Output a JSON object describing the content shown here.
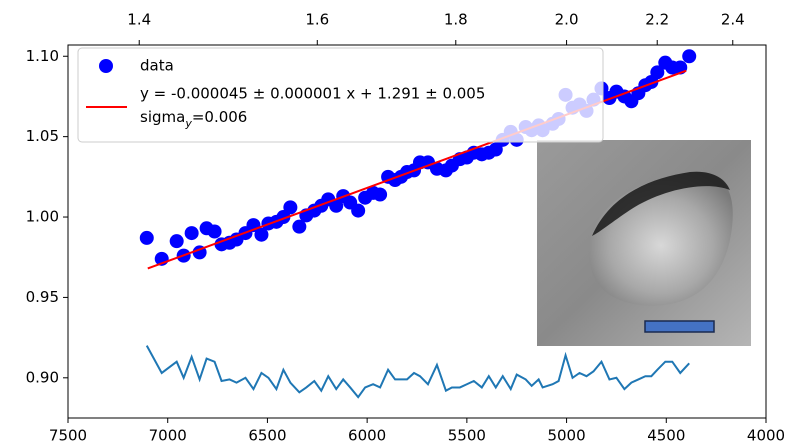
{
  "chart_data": {
    "type": "scatter",
    "xlim": [
      7500,
      4000
    ],
    "ylim": [
      0.875,
      1.107
    ],
    "xticks": [
      7500,
      7000,
      6500,
      6000,
      5500,
      5000,
      4500,
      4000
    ],
    "yticks": [
      {
        "value": 0.9,
        "label": "0.90"
      },
      0.95,
      {
        "value": 1.0,
        "label": "1.00"
      },
      1.05,
      {
        "value": 1.1,
        "label": "1.10"
      }
    ],
    "x2ticks": [
      1.4,
      1.6,
      1.8,
      {
        "value": 2.0,
        "label": "2.0"
      },
      2.2,
      2.4
    ],
    "x2_scale": {
      "type": "reciprocal",
      "numerator": 10000
    },
    "legend": "upper left",
    "legend_note": {
      "text": "sigma",
      "subscript": "y",
      "suffix": "=0.006"
    },
    "series": [
      {
        "name": "data",
        "type": "scatter",
        "color": "#0000ff",
        "x": [
          7105,
          7030,
          6955,
          6920,
          6880,
          6840,
          6805,
          6765,
          6730,
          6690,
          6655,
          6610,
          6570,
          6530,
          6495,
          6455,
          6420,
          6385,
          6340,
          6305,
          6265,
          6230,
          6195,
          6155,
          6120,
          6085,
          6045,
          6010,
          5970,
          5935,
          5895,
          5860,
          5830,
          5800,
          5765,
          5735,
          5695,
          5650,
          5605,
          5575,
          5535,
          5500,
          5465,
          5425,
          5390,
          5355,
          5320,
          5280,
          5250,
          5205,
          5175,
          5140,
          5120,
          5070,
          5040,
          5005,
          4970,
          4935,
          4900,
          4865,
          4825,
          4785,
          4750,
          4710,
          4675,
          4640,
          4605,
          4575,
          4545,
          4505,
          4470,
          4430,
          4385
        ],
        "values": [
          0.987,
          0.974,
          0.985,
          0.976,
          0.99,
          0.978,
          0.993,
          0.991,
          0.983,
          0.984,
          0.986,
          0.99,
          0.995,
          0.989,
          0.996,
          0.997,
          1.0,
          1.006,
          0.994,
          1.001,
          1.004,
          1.007,
          1.011,
          1.007,
          1.013,
          1.009,
          1.004,
          1.012,
          1.015,
          1.014,
          1.025,
          1.023,
          1.025,
          1.028,
          1.029,
          1.034,
          1.034,
          1.03,
          1.029,
          1.032,
          1.036,
          1.037,
          1.04,
          1.039,
          1.04,
          1.042,
          1.048,
          1.053,
          1.048,
          1.056,
          1.054,
          1.057,
          1.054,
          1.058,
          1.061,
          1.076,
          1.068,
          1.07,
          1.066,
          1.073,
          1.08,
          1.074,
          1.078,
          1.075,
          1.072,
          1.077,
          1.082,
          1.084,
          1.09,
          1.096,
          1.093,
          1.093,
          1.1
        ]
      },
      {
        "name": "y = -0.000045 ± 0.000001 x + 1.291 ± 0.005",
        "type": "line",
        "color": "#ff0000",
        "x": [
          7100,
          4400
        ],
        "values": [
          0.968,
          1.091
        ]
      },
      {
        "type": "line",
        "color": "#1f77b4",
        "x": [
          7105,
          7030,
          6955,
          6920,
          6880,
          6840,
          6805,
          6765,
          6730,
          6690,
          6655,
          6610,
          6570,
          6530,
          6495,
          6455,
          6420,
          6385,
          6340,
          6305,
          6265,
          6230,
          6195,
          6155,
          6120,
          6085,
          6045,
          6010,
          5970,
          5935,
          5895,
          5860,
          5830,
          5800,
          5765,
          5735,
          5695,
          5650,
          5605,
          5575,
          5535,
          5500,
          5465,
          5425,
          5390,
          5355,
          5320,
          5280,
          5250,
          5205,
          5175,
          5140,
          5120,
          5070,
          5040,
          5005,
          4970,
          4935,
          4900,
          4865,
          4825,
          4785,
          4750,
          4710,
          4675,
          4640,
          4605,
          4575,
          4545,
          4505,
          4470,
          4430,
          4385
        ],
        "values": [
          0.92,
          0.903,
          0.91,
          0.9,
          0.913,
          0.899,
          0.912,
          0.91,
          0.898,
          0.899,
          0.897,
          0.9,
          0.893,
          0.903,
          0.9,
          0.893,
          0.905,
          0.897,
          0.891,
          0.894,
          0.898,
          0.892,
          0.901,
          0.893,
          0.899,
          0.894,
          0.888,
          0.894,
          0.896,
          0.894,
          0.905,
          0.899,
          0.899,
          0.899,
          0.903,
          0.901,
          0.896,
          0.908,
          0.892,
          0.894,
          0.894,
          0.896,
          0.898,
          0.894,
          0.901,
          0.894,
          0.901,
          0.893,
          0.902,
          0.899,
          0.895,
          0.899,
          0.894,
          0.896,
          0.898,
          0.914,
          0.9,
          0.903,
          0.901,
          0.904,
          0.91,
          0.899,
          0.9,
          0.893,
          0.897,
          0.899,
          0.901,
          0.901,
          0.905,
          0.91,
          0.91,
          0.903,
          0.909
        ]
      }
    ]
  }
}
